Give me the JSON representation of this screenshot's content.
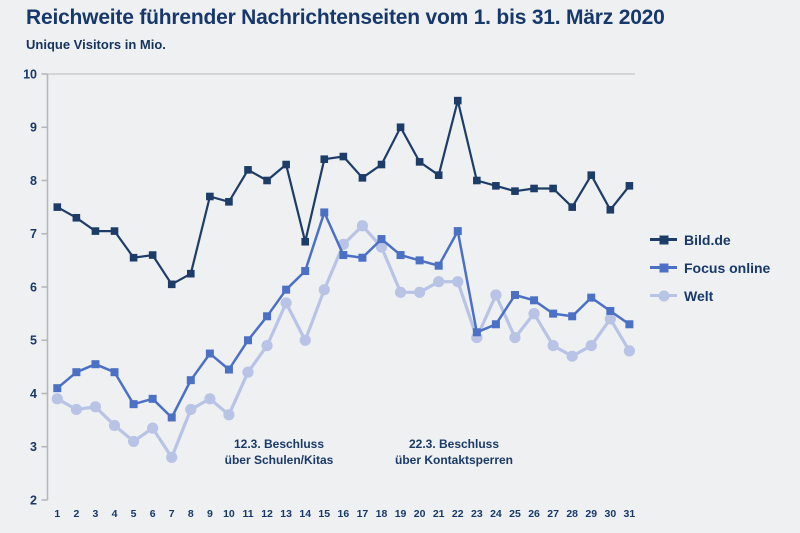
{
  "header": {
    "title": "Reichweite führender Nachrichtenseiten vom 1. bis 31. März 2020",
    "subtitle": "Unique Visitors in Mio."
  },
  "colors": {
    "background": "#eff0f2",
    "text_navy": "#17386a",
    "axis_gray": "#b5b7bb",
    "top_gridline_gray": "#cdced0"
  },
  "legend": {
    "items": [
      {
        "label": "Bild.de"
      },
      {
        "label": "Focus online"
      },
      {
        "label": "Welt"
      }
    ]
  },
  "chart_data": {
    "type": "line",
    "title": "Reichweite führender Nachrichtenseiten vom 1. bis 31. März 2020",
    "ylabel": "Unique Visitors in Mio.",
    "xlabel": "",
    "ylim": [
      2,
      10
    ],
    "y_ticks": [
      10,
      9,
      8,
      7,
      6,
      5,
      4,
      3,
      2
    ],
    "grid": "top-line-only",
    "legend_position": "right",
    "x": [
      1,
      2,
      3,
      4,
      5,
      6,
      7,
      8,
      9,
      10,
      11,
      12,
      13,
      14,
      15,
      16,
      17,
      18,
      19,
      20,
      21,
      22,
      23,
      24,
      25,
      26,
      27,
      28,
      29,
      30,
      31
    ],
    "series": [
      {
        "name": "Bild.de",
        "color": "#1d3d68",
        "marker": "square",
        "values": [
          7.5,
          7.3,
          7.05,
          7.05,
          6.55,
          6.6,
          6.05,
          6.25,
          7.7,
          7.6,
          8.2,
          8.0,
          8.3,
          6.85,
          8.4,
          8.45,
          8.05,
          8.3,
          9.0,
          8.35,
          8.1,
          9.5,
          8.0,
          7.9,
          7.8,
          7.85,
          7.85,
          7.5,
          8.1,
          7.45,
          7.9
        ]
      },
      {
        "name": "Focus online",
        "color": "#4c70c4",
        "marker": "square",
        "values": [
          4.1,
          4.4,
          4.55,
          4.4,
          3.8,
          3.9,
          3.55,
          4.25,
          4.75,
          4.45,
          5.0,
          5.45,
          5.95,
          6.3,
          7.4,
          6.6,
          6.55,
          6.9,
          6.6,
          6.5,
          6.4,
          7.05,
          5.15,
          5.3,
          5.85,
          5.75,
          5.5,
          5.45,
          5.8,
          5.55,
          5.3
        ]
      },
      {
        "name": "Welt",
        "color": "#b8c3e6",
        "marker": "circle",
        "values": [
          3.9,
          3.7,
          3.75,
          3.4,
          3.1,
          3.35,
          2.8,
          3.7,
          3.9,
          3.6,
          4.4,
          4.9,
          5.7,
          5.0,
          5.95,
          6.8,
          7.15,
          6.75,
          5.9,
          5.9,
          6.1,
          6.1,
          5.05,
          5.85,
          5.05,
          5.5,
          4.9,
          4.7,
          4.9,
          5.4,
          4.8
        ]
      }
    ],
    "annotations": [
      {
        "line1": "12.3. Beschluss",
        "line2": "über Schulen/Kitas"
      },
      {
        "line1": "22.3. Beschluss",
        "line2": "über Kontaktsperren"
      }
    ]
  }
}
